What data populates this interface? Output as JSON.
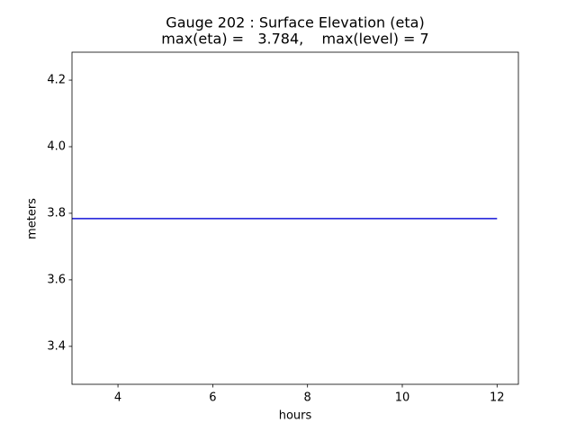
{
  "chart_data": {
    "type": "line",
    "title": "Gauge 202 : Surface Elevation (eta)",
    "subtitle": "max(eta) =   3.784,    max(level) = 7",
    "x_label": "hours",
    "y_label": "meters",
    "x": [
      3.03,
      12
    ],
    "series": [
      {
        "color": "#1515d8",
        "values": [
          3.784,
          3.784
        ]
      }
    ],
    "xlim": [
      3.03,
      12.45
    ],
    "xticks": [
      4,
      6,
      8,
      10,
      12
    ],
    "ylim": [
      3.286,
      4.284
    ],
    "yticks": [
      3.4,
      3.6,
      3.8,
      {
        "value": 4,
        "label": "4.0"
      },
      4.2
    ],
    "grid": false
  }
}
